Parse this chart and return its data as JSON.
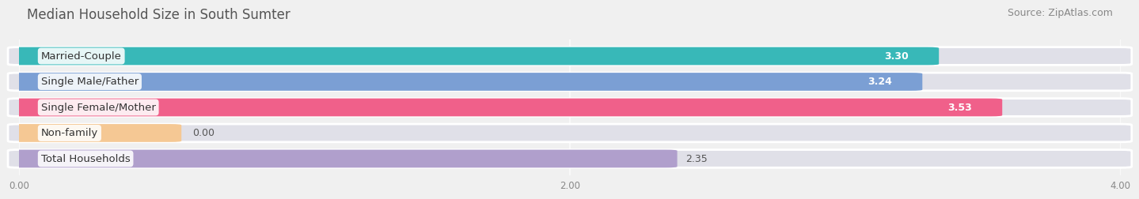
{
  "title": "Median Household Size in South Sumter",
  "source": "Source: ZipAtlas.com",
  "categories": [
    "Married-Couple",
    "Single Male/Father",
    "Single Female/Mother",
    "Non-family",
    "Total Households"
  ],
  "values": [
    3.3,
    3.24,
    3.53,
    0.0,
    2.35
  ],
  "bar_colors": [
    "#38b8b8",
    "#7b9fd4",
    "#f0608a",
    "#f5c894",
    "#b09fcc"
  ],
  "xlim": [
    0,
    4.0
  ],
  "xticks": [
    0.0,
    2.0,
    4.0
  ],
  "xtick_labels": [
    "0.00",
    "2.00",
    "4.00"
  ],
  "title_fontsize": 12,
  "source_fontsize": 9,
  "label_fontsize": 9.5,
  "value_fontsize": 9,
  "background_color": "#f0f0f0",
  "bar_bg_color": "#e0e0e8",
  "nonfamily_bar_width": 0.55,
  "bar_height": 0.62,
  "bar_gap": 1.0
}
